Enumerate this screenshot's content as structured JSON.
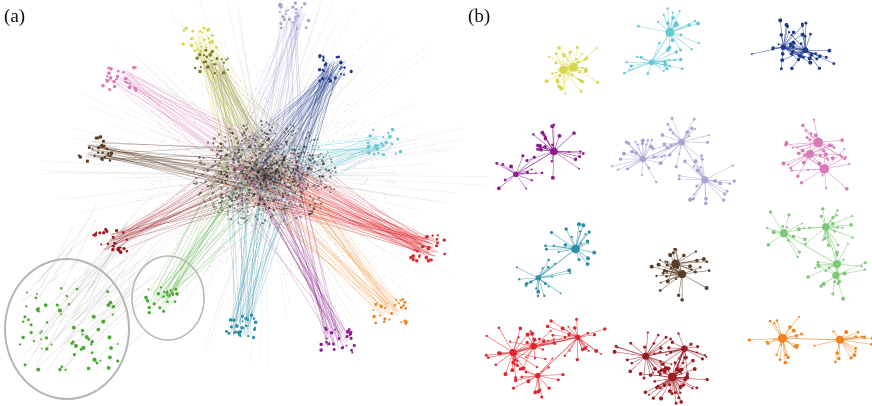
{
  "panels": [
    {
      "id": "a",
      "label": "(a)"
    },
    {
      "id": "b",
      "label": "(b)"
    }
  ],
  "colors": {
    "core": "#1a1a1a",
    "yellow": "#d6d64a",
    "cyan": "#62c6d4",
    "navy": "#1f3a8c",
    "purple": "#8a1c8c",
    "lavender": "#a9a3d4",
    "pink": "#d67bb6",
    "teal": "#2c8fa6",
    "brown": "#5a3d26",
    "lightgreen": "#7fc87a",
    "red": "#e0262c",
    "darkred": "#9c1a22",
    "orange": "#f0821e",
    "green": "#4aa832",
    "olive": "#7a7a2a",
    "grey": "#9a9a9a"
  },
  "overview_clusters": [
    "yellow",
    "lavender",
    "pink",
    "navy",
    "cyan",
    "brown",
    "darkred",
    "red",
    "green",
    "teal",
    "purple",
    "orange",
    "olive"
  ],
  "subnetworks": [
    "yellow",
    "cyan",
    "navy",
    "purple",
    "lavender",
    "pink",
    "teal",
    "brown",
    "lightgreen",
    "red",
    "darkred",
    "orange"
  ]
}
